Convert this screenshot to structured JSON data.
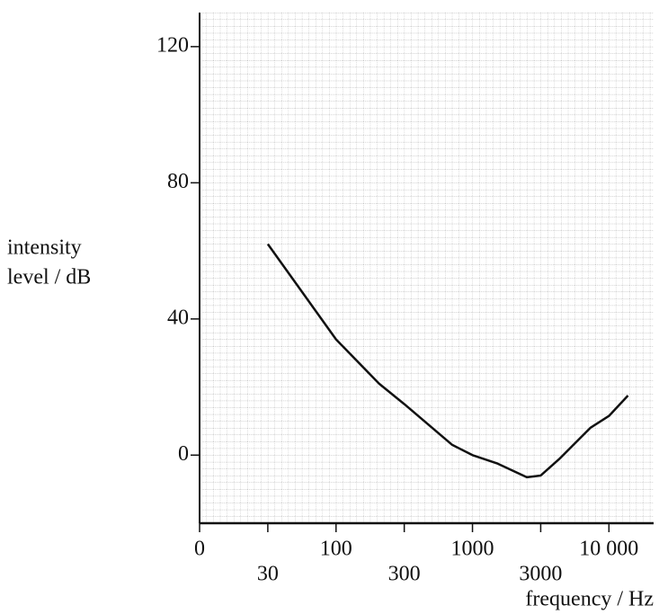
{
  "chart_data": {
    "type": "line",
    "y_label": [
      "intensity",
      "level / dB"
    ],
    "x_label": "frequency / Hz",
    "x": [
      30,
      100,
      200,
      300,
      700,
      1000,
      1500,
      2400,
      3000,
      4200,
      7200,
      10000,
      14000
    ],
    "series": [
      {
        "color": "#111111",
        "values": [
          62,
          34,
          21,
          15,
          3,
          0,
          -2.5,
          -6.5,
          -6,
          -1,
          8,
          11.5,
          17.5
        ]
      }
    ],
    "xlim": [
      0,
      22000
    ],
    "xticks": [
      0,
      30,
      100,
      300,
      1000,
      3000,
      {
        "value": 10000,
        "label": "10 000"
      }
    ],
    "ylim": [
      -20,
      130
    ],
    "yticks": [
      0,
      40,
      80,
      120
    ],
    "grid": true
  }
}
